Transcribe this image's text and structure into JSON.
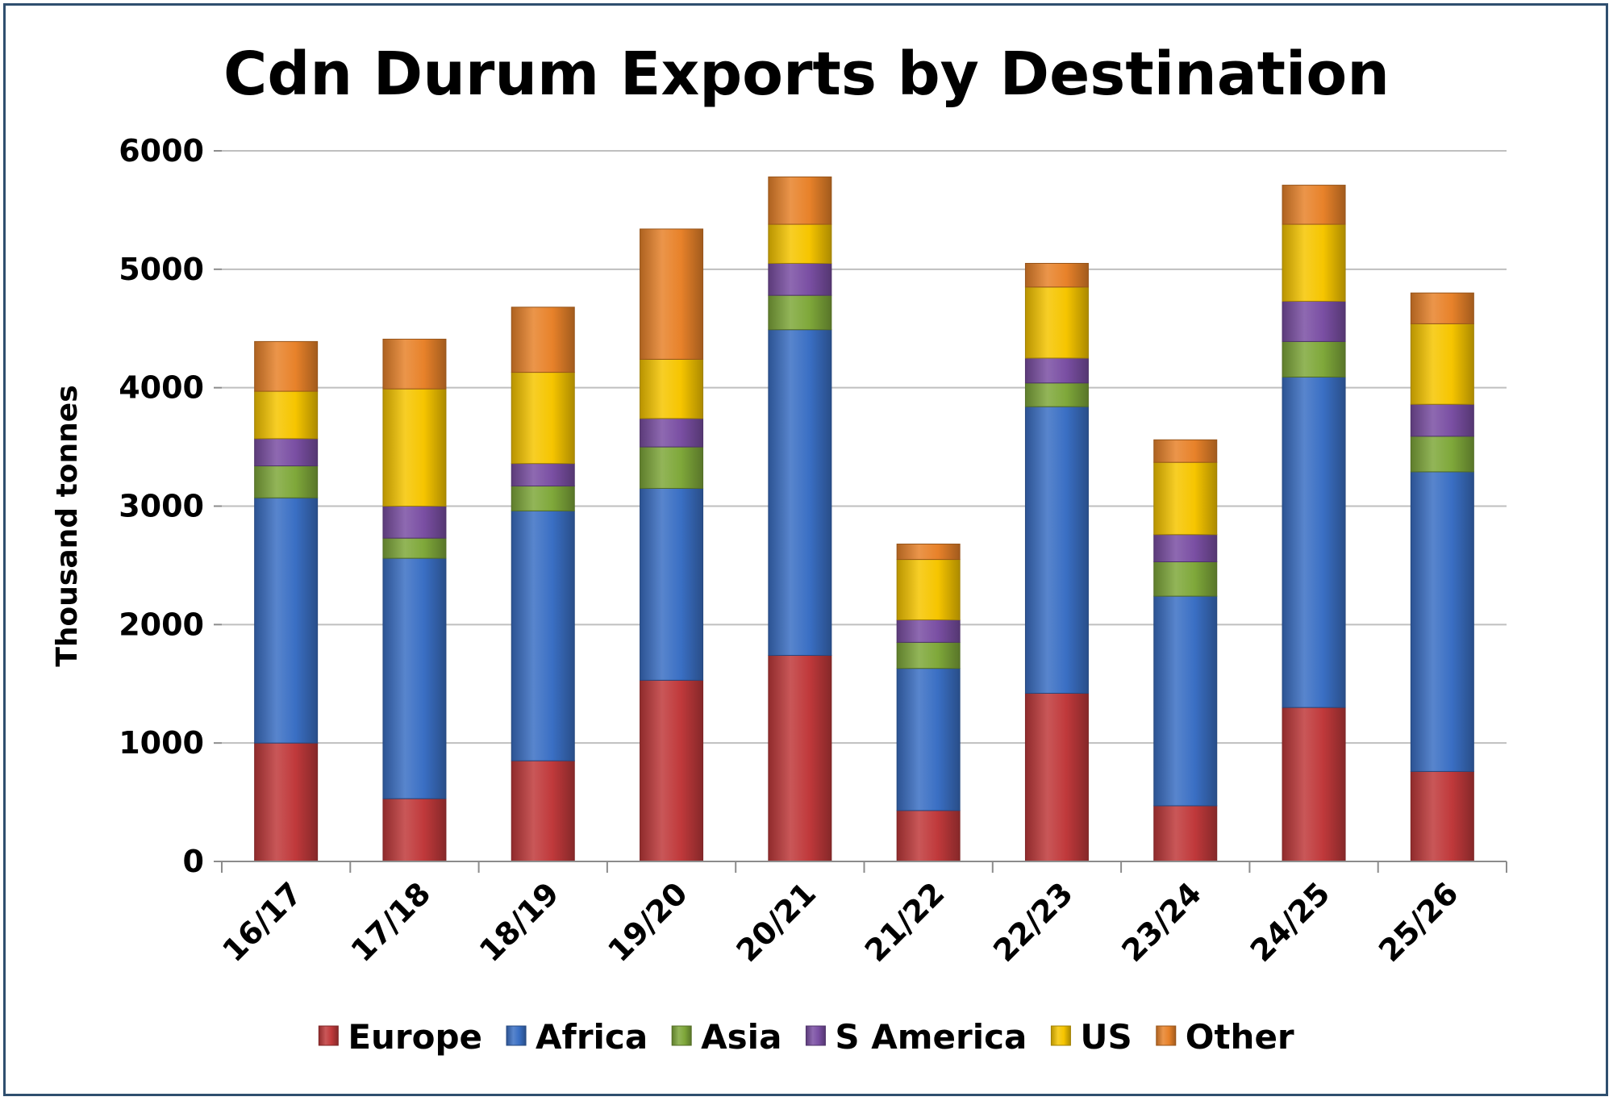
{
  "chart_data": {
    "type": "bar",
    "stacked": true,
    "title": "Cdn Durum Exports by Destination",
    "xlabel": "",
    "ylabel": "Thousand tonnes",
    "ylim": [
      0,
      6000
    ],
    "yticks": [
      0,
      1000,
      2000,
      3000,
      4000,
      5000,
      6000
    ],
    "grid": true,
    "legend_position": "bottom",
    "categories": [
      "16/17",
      "17/18",
      "18/19",
      "19/20",
      "20/21",
      "21/22",
      "22/23",
      "23/24",
      "24/25",
      "25/26"
    ],
    "series": [
      {
        "name": "Europe",
        "color": "#c0393b",
        "values": [
          1000,
          530,
          850,
          1530,
          1740,
          430,
          1420,
          470,
          1300,
          760
        ]
      },
      {
        "name": "Africa",
        "color": "#3a6fc4",
        "values": [
          2070,
          2030,
          2110,
          1620,
          2750,
          1200,
          2420,
          1770,
          2790,
          2530
        ]
      },
      {
        "name": "Asia",
        "color": "#7fa83a",
        "values": [
          270,
          170,
          210,
          350,
          290,
          220,
          200,
          290,
          300,
          300
        ]
      },
      {
        "name": "S America",
        "color": "#7a4fa3",
        "values": [
          230,
          270,
          190,
          240,
          270,
          190,
          210,
          230,
          340,
          270
        ]
      },
      {
        "name": "US",
        "color": "#f6c500",
        "values": [
          400,
          990,
          770,
          500,
          330,
          510,
          600,
          610,
          650,
          680
        ]
      },
      {
        "name": "Other",
        "color": "#e8822a",
        "values": [
          420,
          420,
          550,
          1100,
          400,
          130,
          200,
          190,
          330,
          260
        ]
      }
    ]
  }
}
